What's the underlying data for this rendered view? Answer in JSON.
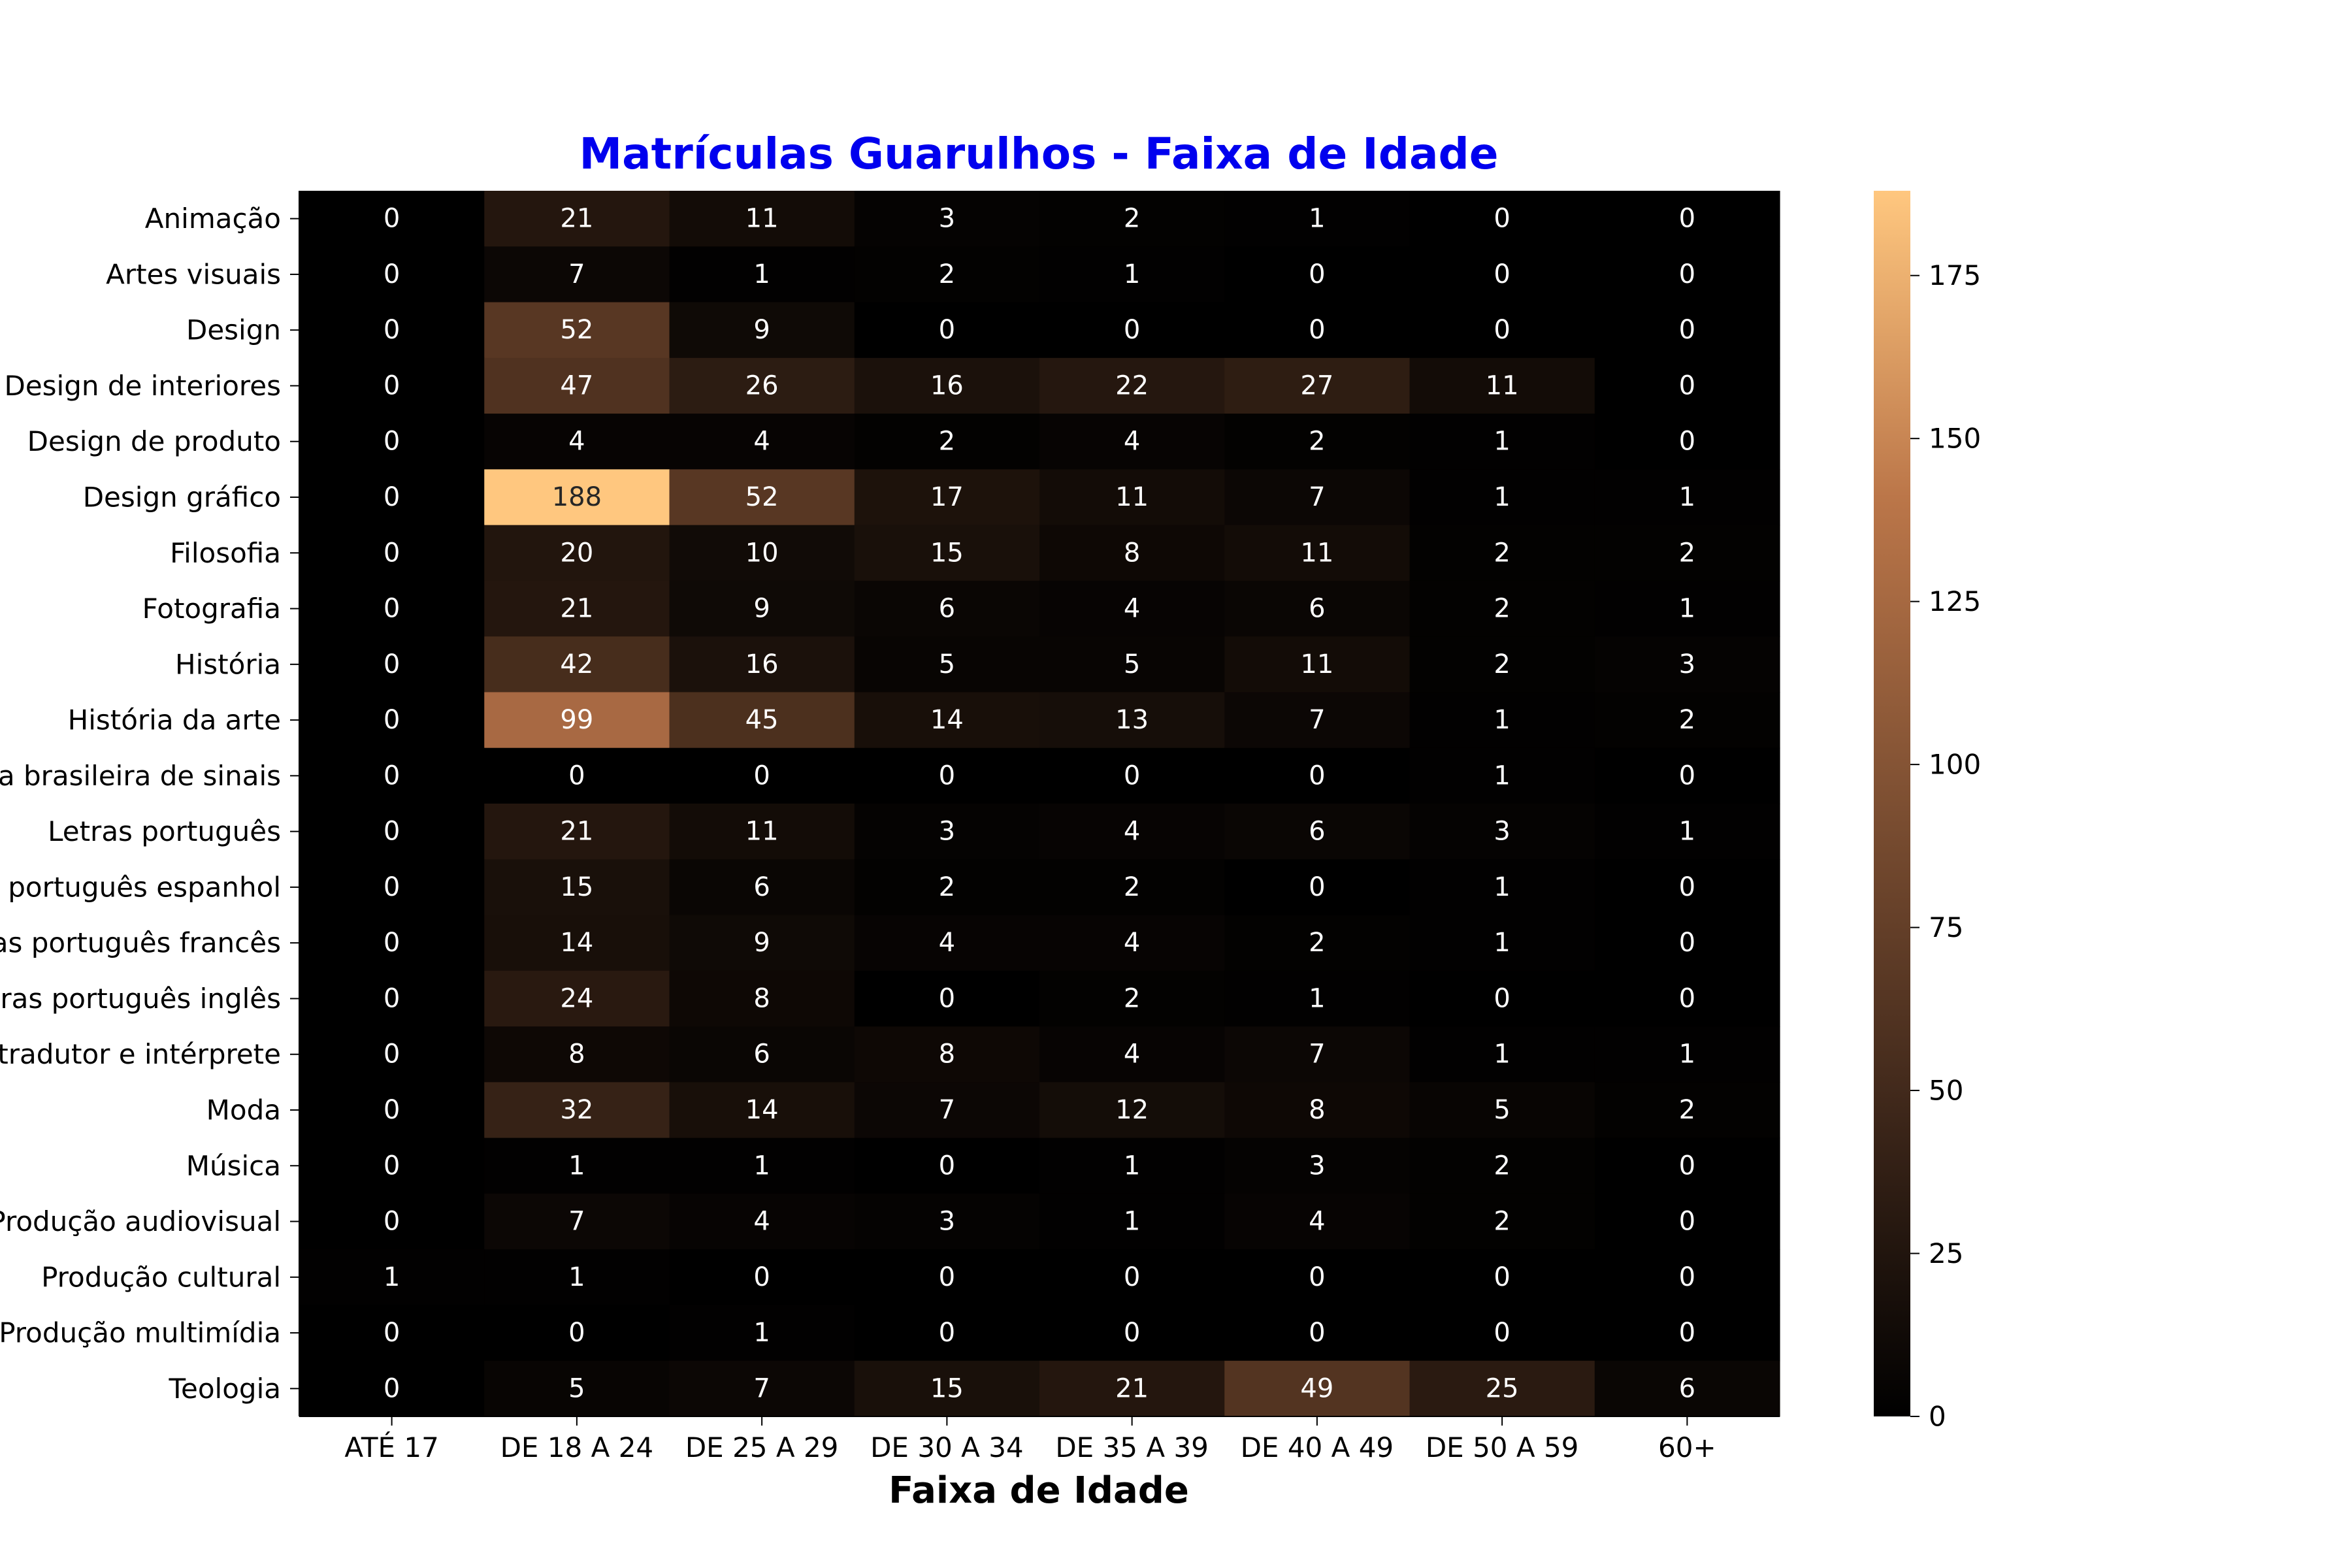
{
  "chart_data": {
    "type": "heatmap",
    "title": "Matrículas Guarulhos - Faixa de Idade",
    "xlabel": "Faixa de Idade",
    "ylabel": "",
    "columns": [
      "ATÉ 17",
      "DE 18 A 24",
      "DE 25 A 29",
      "DE 30 A 34",
      "DE 35 A 39",
      "DE 40 A 49",
      "DE 50 A 59",
      "60+"
    ],
    "rows": [
      "Animação",
      "Artes visuais",
      "Design",
      "Design de interiores",
      "Design de produto",
      "Design gráfico",
      "Filosofia",
      "Fotografia",
      "História",
      "História da arte",
      "Letras português e língua brasileira de sinais",
      "Letras português",
      "Letras português espanhol",
      "Letras português francês",
      "Letras português inglês",
      "Letras tradutor e intérprete",
      "Moda",
      "Música",
      "Produção audiovisual",
      "Produção cultural",
      "Produção multimídia",
      "Teologia"
    ],
    "values": [
      [
        0,
        21,
        11,
        3,
        2,
        1,
        0,
        0
      ],
      [
        0,
        7,
        1,
        2,
        1,
        0,
        0,
        0
      ],
      [
        0,
        52,
        9,
        0,
        0,
        0,
        0,
        0
      ],
      [
        0,
        47,
        26,
        16,
        22,
        27,
        11,
        0
      ],
      [
        0,
        4,
        4,
        2,
        4,
        2,
        1,
        0
      ],
      [
        0,
        188,
        52,
        17,
        11,
        7,
        1,
        1
      ],
      [
        0,
        20,
        10,
        15,
        8,
        11,
        2,
        2
      ],
      [
        0,
        21,
        9,
        6,
        4,
        6,
        2,
        1
      ],
      [
        0,
        42,
        16,
        5,
        5,
        11,
        2,
        3
      ],
      [
        0,
        99,
        45,
        14,
        13,
        7,
        1,
        2
      ],
      [
        0,
        0,
        0,
        0,
        0,
        0,
        1,
        0
      ],
      [
        0,
        21,
        11,
        3,
        4,
        6,
        3,
        1
      ],
      [
        0,
        15,
        6,
        2,
        2,
        0,
        1,
        0
      ],
      [
        0,
        14,
        9,
        4,
        4,
        2,
        1,
        0
      ],
      [
        0,
        24,
        8,
        0,
        2,
        1,
        0,
        0
      ],
      [
        0,
        8,
        6,
        8,
        4,
        7,
        1,
        1
      ],
      [
        0,
        32,
        14,
        7,
        12,
        8,
        5,
        2
      ],
      [
        0,
        1,
        1,
        0,
        1,
        3,
        2,
        0
      ],
      [
        0,
        7,
        4,
        3,
        1,
        4,
        2,
        0
      ],
      [
        1,
        1,
        0,
        0,
        0,
        0,
        0,
        0
      ],
      [
        0,
        0,
        1,
        0,
        0,
        0,
        0,
        0
      ],
      [
        0,
        5,
        7,
        15,
        21,
        49,
        25,
        6
      ]
    ],
    "colormap": "copper",
    "vmin": 0,
    "vmax": 188,
    "colorbar_ticks": [
      0,
      25,
      50,
      75,
      100,
      125,
      150,
      175
    ],
    "title_color": "#0000ee",
    "grid": false
  }
}
